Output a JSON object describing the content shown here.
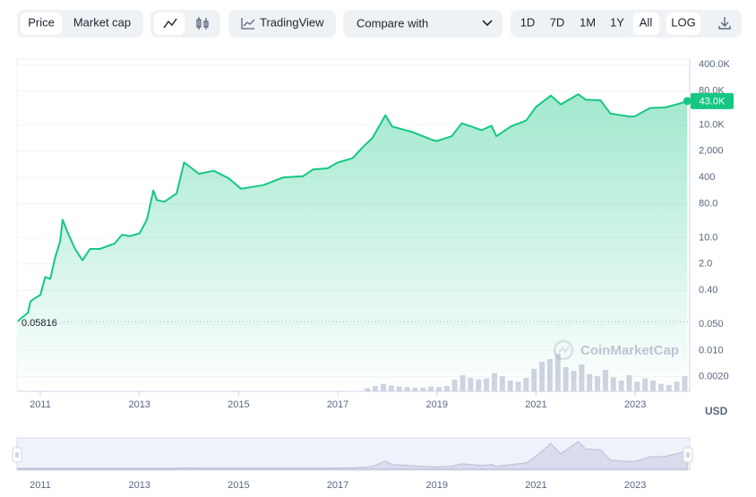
{
  "toolbar": {
    "tabs": [
      "Price",
      "Market cap"
    ],
    "tradingview": "TradingView",
    "compare": "Compare with",
    "ranges": [
      "1D",
      "7D",
      "1M",
      "1Y",
      "All"
    ],
    "log": "LOG"
  },
  "chart_data": {
    "type": "area",
    "log_scale": true,
    "grid": true,
    "x": [
      2010.55,
      2010.6,
      2010.75,
      2010.8,
      2010.9,
      2011.0,
      2011.1,
      2011.2,
      2011.3,
      2011.4,
      2011.45,
      2011.55,
      2011.7,
      2011.85,
      2012.0,
      2012.2,
      2012.5,
      2012.65,
      2012.8,
      2013.0,
      2013.15,
      2013.28,
      2013.35,
      2013.5,
      2013.75,
      2013.9,
      2014.0,
      2014.2,
      2014.5,
      2014.8,
      2015.05,
      2015.5,
      2015.9,
      2016.3,
      2016.5,
      2016.8,
      2017.0,
      2017.3,
      2017.5,
      2017.7,
      2017.96,
      2018.1,
      2018.5,
      2018.9,
      2019.0,
      2019.3,
      2019.5,
      2019.7,
      2019.9,
      2020.1,
      2020.2,
      2020.5,
      2020.8,
      2021.0,
      2021.3,
      2021.5,
      2021.85,
      2022.0,
      2022.3,
      2022.5,
      2022.9,
      2023.0,
      2023.3,
      2023.6,
      2023.9,
      2024.05
    ],
    "series": [
      {
        "color": "#16c784",
        "values": [
          0.06,
          0.07,
          0.1,
          0.2,
          0.25,
          0.3,
          0.9,
          0.8,
          3,
          8,
          30,
          14,
          5,
          2.5,
          5,
          5,
          7,
          12,
          11,
          13,
          30,
          180,
          100,
          90,
          150,
          1000,
          800,
          500,
          600,
          380,
          200,
          250,
          400,
          430,
          650,
          700,
          1000,
          1300,
          2500,
          4500,
          18000,
          9000,
          6500,
          4000,
          3700,
          5000,
          11000,
          9000,
          7200,
          9500,
          5000,
          9200,
          13000,
          30000,
          60000,
          35000,
          65000,
          47000,
          45000,
          20000,
          16500,
          17000,
          28000,
          29000,
          37000,
          43000
        ]
      }
    ],
    "start_price": 0.05816,
    "current_price": {
      "value": 43000,
      "label": "43.0K"
    },
    "xlim": [
      2010.53,
      2024.1
    ],
    "xticks": [
      2011,
      2013,
      2015,
      2017,
      2019,
      2021,
      2023
    ],
    "ylim": [
      0.00082,
      560000
    ],
    "yticks": [
      {
        "value": 400000,
        "label": "400.0K"
      },
      {
        "value": 80000,
        "label": "80.0K"
      },
      {
        "value": 10000,
        "label": "10.0K"
      },
      {
        "value": 2000,
        "label": "2,000"
      },
      400,
      {
        "value": 80,
        "label": "80.0"
      },
      {
        "value": 10,
        "label": "10.0"
      },
      {
        "value": 2,
        "label": "2.0"
      },
      {
        "value": 0.4,
        "label": "0.40"
      },
      {
        "value": 0.05,
        "label": "0.050"
      },
      {
        "value": 0.01,
        "label": "0.010"
      },
      {
        "value": 0.002,
        "label": "0.0020"
      }
    ],
    "y_unit": "USD",
    "watermark": "CoinMarketCap",
    "volume": {
      "color": "#c3c9d9",
      "ylim": [
        0,
        100
      ],
      "x": [
        2017.6,
        2017.76,
        2017.92,
        2018.08,
        2018.24,
        2018.4,
        2018.56,
        2018.72,
        2018.88,
        2019.04,
        2019.2,
        2019.36,
        2019.52,
        2019.68,
        2019.84,
        2020.0,
        2020.16,
        2020.32,
        2020.48,
        2020.64,
        2020.8,
        2020.96,
        2021.12,
        2021.28,
        2021.44,
        2021.6,
        2021.76,
        2021.92,
        2022.08,
        2022.24,
        2022.4,
        2022.56,
        2022.72,
        2022.88,
        2023.04,
        2023.2,
        2023.36,
        2023.52,
        2023.68,
        2023.84,
        2024.0
      ],
      "values": [
        6,
        10,
        14,
        11,
        9,
        8,
        7,
        7,
        9,
        8,
        10,
        22,
        30,
        25,
        22,
        24,
        34,
        28,
        20,
        18,
        25,
        42,
        55,
        60,
        70,
        45,
        38,
        50,
        32,
        28,
        40,
        26,
        20,
        30,
        18,
        24,
        20,
        14,
        12,
        18,
        28
      ]
    }
  }
}
